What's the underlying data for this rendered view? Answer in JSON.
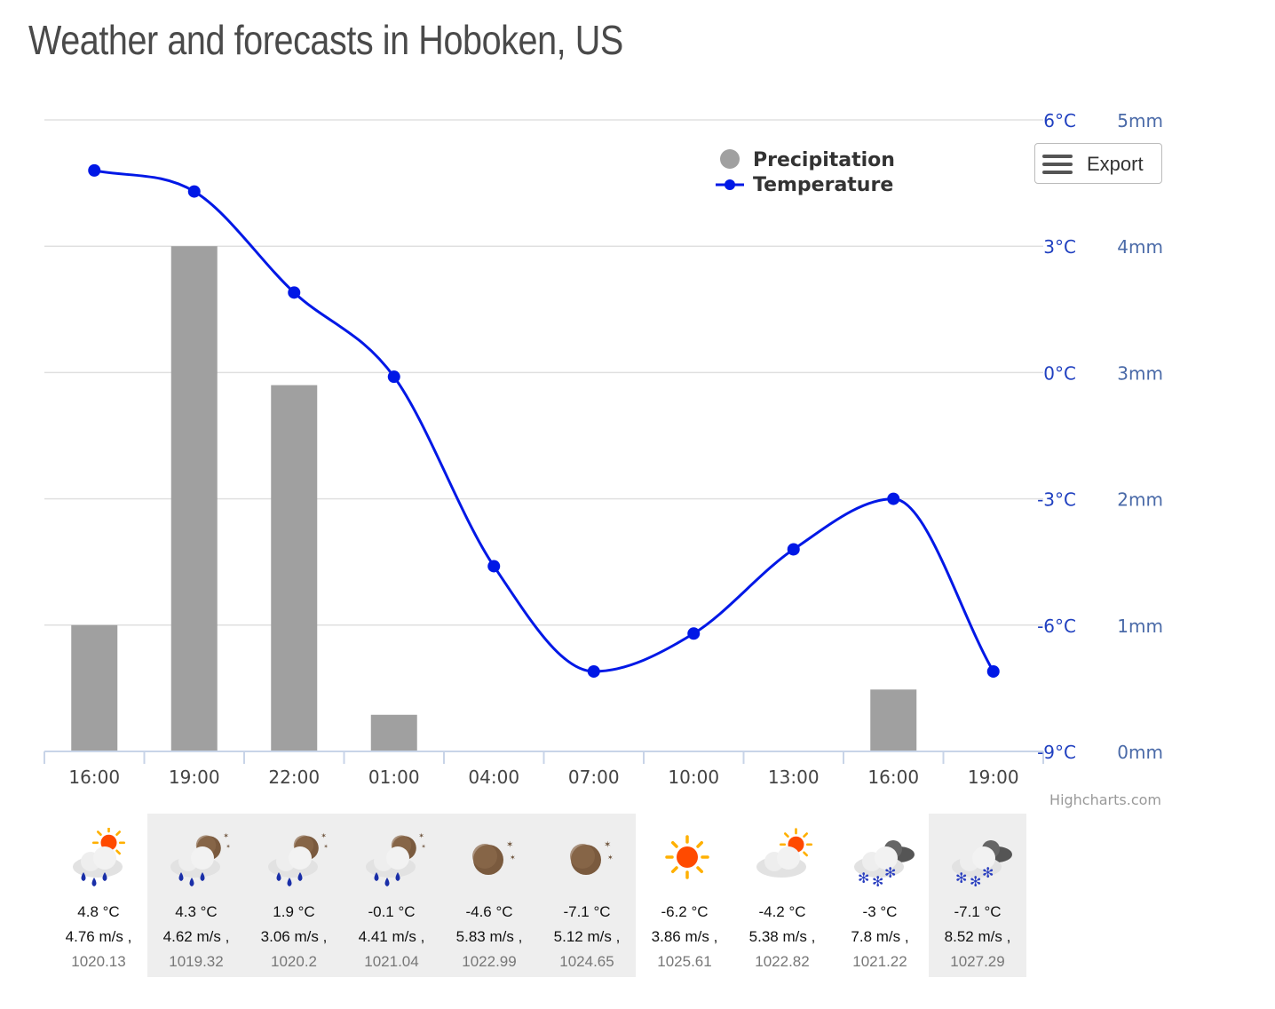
{
  "title": "Weather and forecasts in Hoboken, US",
  "export_label": "Export",
  "credits": "Highcharts.com",
  "colors": {
    "temperature": "#0018e6",
    "precipitation": "#a0a0a0",
    "axis_label": "#2040c0",
    "mm_label": "#4a6aa8",
    "grid": "#e0e0e0"
  },
  "chart_data": {
    "type": "bar",
    "categories": [
      "16:00",
      "19:00",
      "22:00",
      "01:00",
      "04:00",
      "07:00",
      "10:00",
      "13:00",
      "16:00",
      "19:00"
    ],
    "series": [
      {
        "name": "Precipitation",
        "type": "bar",
        "axis": "right",
        "values": [
          1.0,
          4.0,
          2.9,
          0.29,
          0,
          0,
          0,
          0,
          0.49,
          0
        ]
      },
      {
        "name": "Temperature",
        "type": "line",
        "axis": "left",
        "values": [
          4.8,
          4.3,
          1.9,
          -0.1,
          -4.6,
          -7.1,
          -6.2,
          -4.2,
          -3.0,
          -7.1
        ]
      }
    ],
    "y_left": {
      "min": -9,
      "max": 6,
      "ticks": [
        "6°C",
        "3°C",
        "0°C",
        "-3°C",
        "-6°C",
        "-9°C"
      ],
      "tick_values": [
        6,
        3,
        0,
        -3,
        -6,
        -9
      ]
    },
    "y_right": {
      "min": 0,
      "max": 5,
      "ticks": [
        "5mm",
        "4mm",
        "3mm",
        "2mm",
        "1mm",
        "0mm"
      ],
      "tick_values": [
        5,
        4,
        3,
        2,
        1,
        0
      ]
    },
    "legend": {
      "placement": "top-right",
      "items": [
        "Precipitation",
        "Temperature"
      ]
    },
    "grid": true
  },
  "forecast": [
    {
      "icon": "rain-sun-icon",
      "temp": "4.8 °C",
      "wind": "4.76 m/s ,",
      "pressure": "1020.13",
      "shaded": false
    },
    {
      "icon": "rain-moon-icon",
      "temp": "4.3 °C",
      "wind": "4.62 m/s ,",
      "pressure": "1019.32",
      "shaded": true
    },
    {
      "icon": "rain-moon-icon",
      "temp": "1.9 °C",
      "wind": "3.06 m/s ,",
      "pressure": "1020.2",
      "shaded": true
    },
    {
      "icon": "rain-moon-icon",
      "temp": "-0.1 °C",
      "wind": "4.41 m/s ,",
      "pressure": "1021.04",
      "shaded": true
    },
    {
      "icon": "moon-icon",
      "temp": "-4.6 °C",
      "wind": "5.83 m/s ,",
      "pressure": "1022.99",
      "shaded": true
    },
    {
      "icon": "moon-icon",
      "temp": "-7.1 °C",
      "wind": "5.12 m/s ,",
      "pressure": "1024.65",
      "shaded": true
    },
    {
      "icon": "sun-icon",
      "temp": "-6.2 °C",
      "wind": "3.86 m/s ,",
      "pressure": "1025.61",
      "shaded": false
    },
    {
      "icon": "cloud-sun-icon",
      "temp": "-4.2 °C",
      "wind": "5.38 m/s ,",
      "pressure": "1022.82",
      "shaded": false
    },
    {
      "icon": "snow-cloud-icon",
      "temp": "-3 °C",
      "wind": "7.8 m/s ,",
      "pressure": "1021.22",
      "shaded": false
    },
    {
      "icon": "snow-cloud-icon",
      "temp": "-7.1 °C",
      "wind": "8.52 m/s ,",
      "pressure": "1027.29",
      "shaded": true
    }
  ]
}
